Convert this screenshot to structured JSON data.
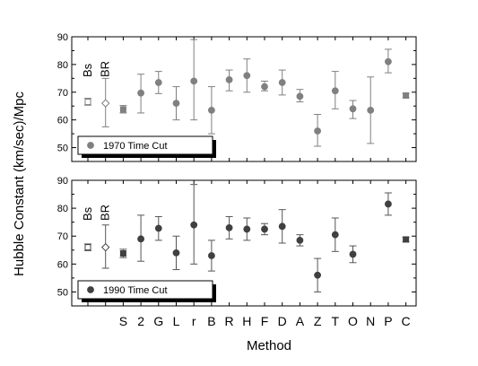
{
  "ylabel": "Hubble Constant (km/sec)/Mpc",
  "xlabel": "Method",
  "categories": [
    "",
    "",
    "S",
    "2",
    "G",
    "L",
    "r",
    "B",
    "R",
    "H",
    "F",
    "D",
    "A",
    "Z",
    "T",
    "O",
    "N",
    "P",
    "C"
  ],
  "chart_data": [
    {
      "type": "scatter",
      "legend": "1970 Time Cut",
      "legend_position": "bottom-left",
      "ylim": [
        45,
        90
      ],
      "yticks": [
        50,
        60,
        70,
        80,
        90
      ],
      "marker_color": "#808080",
      "error_color": "#808080",
      "annotations": [
        {
          "text": "Bs",
          "x": 0
        },
        {
          "text": "BR",
          "x": 1
        }
      ],
      "points": [
        {
          "x": 0,
          "y": 66.5,
          "lo": 65.3,
          "hi": 67.8,
          "marker": "square-open"
        },
        {
          "x": 1,
          "y": 66.0,
          "lo": 57.5,
          "hi": 75.0,
          "marker": "diamond-open"
        },
        {
          "x": 2,
          "y": 63.8,
          "lo": 62.5,
          "hi": 65.2,
          "marker": "square"
        },
        {
          "x": 3,
          "y": 69.7,
          "lo": 62.5,
          "hi": 76.5,
          "marker": "circle"
        },
        {
          "x": 4,
          "y": 73.5,
          "lo": 69.5,
          "hi": 77.5,
          "marker": "circle"
        },
        {
          "x": 5,
          "y": 66.0,
          "lo": 60.0,
          "hi": 72.0,
          "marker": "circle"
        },
        {
          "x": 6,
          "y": 74.0,
          "lo": 60.0,
          "hi": 89.0,
          "marker": "circle"
        },
        {
          "x": 7,
          "y": 63.5,
          "lo": 55.0,
          "hi": 72.0,
          "marker": "circle"
        },
        {
          "x": 8,
          "y": 74.5,
          "lo": 70.5,
          "hi": 78.0,
          "marker": "circle"
        },
        {
          "x": 9,
          "y": 76.0,
          "lo": 70.0,
          "hi": 82.0,
          "marker": "circle"
        },
        {
          "x": 10,
          "y": 72.0,
          "lo": 70.5,
          "hi": 74.0,
          "marker": "circle"
        },
        {
          "x": 11,
          "y": 73.5,
          "lo": 69.0,
          "hi": 78.0,
          "marker": "circle"
        },
        {
          "x": 12,
          "y": 68.5,
          "lo": 66.5,
          "hi": 71.0,
          "marker": "circle"
        },
        {
          "x": 13,
          "y": 56.0,
          "lo": 50.5,
          "hi": 62.0,
          "marker": "circle"
        },
        {
          "x": 14,
          "y": 70.5,
          "lo": 64.0,
          "hi": 77.5,
          "marker": "circle"
        },
        {
          "x": 15,
          "y": 64.0,
          "lo": 60.5,
          "hi": 67.0,
          "marker": "circle"
        },
        {
          "x": 16,
          "y": 63.5,
          "lo": 51.5,
          "hi": 75.5,
          "marker": "circle"
        },
        {
          "x": 17,
          "y": 81.0,
          "lo": 77.0,
          "hi": 85.5,
          "marker": "circle"
        },
        {
          "x": 18,
          "y": 68.8,
          "lo": 68.0,
          "hi": 69.6,
          "marker": "square"
        }
      ]
    },
    {
      "type": "scatter",
      "legend": "1990 Time Cut",
      "legend_position": "bottom-left",
      "ylim": [
        45,
        90
      ],
      "yticks": [
        50,
        60,
        70,
        80,
        90
      ],
      "marker_color": "#404040",
      "error_color": "#555555",
      "annotations": [
        {
          "text": "Bs",
          "x": 0
        },
        {
          "text": "BR",
          "x": 1
        }
      ],
      "points": [
        {
          "x": 0,
          "y": 66.0,
          "lo": 64.8,
          "hi": 67.2,
          "marker": "square-open"
        },
        {
          "x": 1,
          "y": 66.0,
          "lo": 58.5,
          "hi": 74.0,
          "marker": "diamond-open"
        },
        {
          "x": 2,
          "y": 63.8,
          "lo": 62.3,
          "hi": 65.3,
          "marker": "square"
        },
        {
          "x": 3,
          "y": 69.0,
          "lo": 61.0,
          "hi": 77.5,
          "marker": "circle"
        },
        {
          "x": 4,
          "y": 72.8,
          "lo": 68.5,
          "hi": 77.0,
          "marker": "circle"
        },
        {
          "x": 5,
          "y": 64.0,
          "lo": 58.0,
          "hi": 70.0,
          "marker": "circle"
        },
        {
          "x": 6,
          "y": 74.0,
          "lo": 60.0,
          "hi": 88.5,
          "marker": "circle"
        },
        {
          "x": 7,
          "y": 63.0,
          "lo": 57.5,
          "hi": 68.5,
          "marker": "circle"
        },
        {
          "x": 8,
          "y": 73.0,
          "lo": 69.0,
          "hi": 77.0,
          "marker": "circle"
        },
        {
          "x": 9,
          "y": 72.5,
          "lo": 68.5,
          "hi": 76.5,
          "marker": "circle"
        },
        {
          "x": 10,
          "y": 72.5,
          "lo": 70.5,
          "hi": 74.5,
          "marker": "circle"
        },
        {
          "x": 11,
          "y": 73.5,
          "lo": 67.5,
          "hi": 79.5,
          "marker": "circle"
        },
        {
          "x": 12,
          "y": 68.5,
          "lo": 66.5,
          "hi": 70.5,
          "marker": "circle"
        },
        {
          "x": 13,
          "y": 56.0,
          "lo": 50.0,
          "hi": 62.0,
          "marker": "circle"
        },
        {
          "x": 14,
          "y": 70.5,
          "lo": 64.5,
          "hi": 76.5,
          "marker": "circle"
        },
        {
          "x": 15,
          "y": 63.5,
          "lo": 60.5,
          "hi": 66.5,
          "marker": "circle"
        },
        {
          "x": 17,
          "y": 81.5,
          "lo": 77.5,
          "hi": 85.5,
          "marker": "circle"
        },
        {
          "x": 18,
          "y": 68.8,
          "lo": 68.0,
          "hi": 69.6,
          "marker": "square"
        }
      ]
    }
  ]
}
